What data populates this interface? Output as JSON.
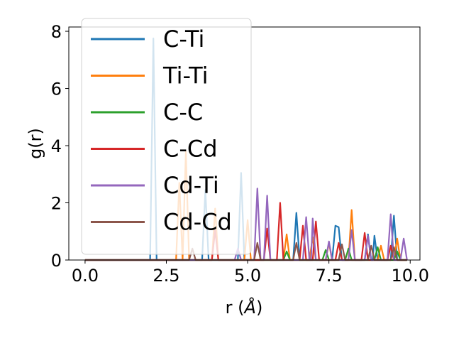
{
  "chart_data": {
    "type": "line",
    "xlabel_main": "r (",
    "xlabel_unit": "Å",
    "xlabel_close": ")",
    "ylabel": "g(r)",
    "xlim": [
      -0.5,
      10.3
    ],
    "ylim": [
      0,
      8.15
    ],
    "xticks": [
      0.0,
      2.5,
      5.0,
      7.5,
      10.0
    ],
    "xtick_labels": [
      "0.0",
      "2.5",
      "5.0",
      "7.5",
      "10.0"
    ],
    "yticks": [
      0,
      2,
      4,
      6,
      8
    ],
    "ytick_labels": [
      "0",
      "2",
      "4",
      "6",
      "8"
    ],
    "legend_position": "upper-left",
    "grid": false,
    "series": [
      {
        "name": "C-Ti",
        "color": "#1f77b4",
        "points": [
          [
            0,
            0
          ],
          [
            2.0,
            0
          ],
          [
            2.1,
            7.75
          ],
          [
            2.2,
            0
          ],
          [
            3.6,
            0
          ],
          [
            3.7,
            2.45
          ],
          [
            3.8,
            0
          ],
          [
            4.7,
            0
          ],
          [
            4.8,
            3.05
          ],
          [
            4.9,
            0
          ],
          [
            6.4,
            0
          ],
          [
            6.5,
            1.65
          ],
          [
            6.6,
            0
          ],
          [
            7.6,
            0
          ],
          [
            7.7,
            1.2
          ],
          [
            7.8,
            1.15
          ],
          [
            7.9,
            0
          ],
          [
            8.6,
            0
          ],
          [
            8.7,
            0.9
          ],
          [
            8.8,
            0
          ],
          [
            8.85,
            0
          ],
          [
            8.9,
            0.85
          ],
          [
            9.0,
            0
          ],
          [
            9.4,
            0
          ],
          [
            9.5,
            1.55
          ],
          [
            9.6,
            0
          ],
          [
            9.9,
            0
          ]
        ]
      },
      {
        "name": "Ti-Ti",
        "color": "#ff7f0e",
        "points": [
          [
            0,
            0
          ],
          [
            2.8,
            0
          ],
          [
            2.9,
            2.7
          ],
          [
            3.0,
            0
          ],
          [
            3.1,
            3.8
          ],
          [
            3.2,
            0
          ],
          [
            3.9,
            0
          ],
          [
            4.0,
            1.8
          ],
          [
            4.1,
            0
          ],
          [
            4.9,
            0
          ],
          [
            5.0,
            1.4
          ],
          [
            5.1,
            0
          ],
          [
            6.1,
            0
          ],
          [
            6.2,
            0.9
          ],
          [
            6.3,
            0
          ],
          [
            6.9,
            0
          ],
          [
            7.0,
            0.8
          ],
          [
            7.1,
            0
          ],
          [
            7.4,
            0
          ],
          [
            7.5,
            0.6
          ],
          [
            7.6,
            0
          ],
          [
            8.1,
            0
          ],
          [
            8.2,
            1.75
          ],
          [
            8.3,
            0
          ],
          [
            9.0,
            0
          ],
          [
            9.1,
            0.5
          ],
          [
            9.2,
            0
          ],
          [
            9.5,
            0
          ],
          [
            9.6,
            0.75
          ],
          [
            9.7,
            0
          ],
          [
            9.9,
            0
          ]
        ]
      },
      {
        "name": "C-C",
        "color": "#2ca02c",
        "points": [
          [
            0,
            0
          ],
          [
            6.1,
            0
          ],
          [
            6.2,
            0.3
          ],
          [
            6.3,
            0
          ],
          [
            7.3,
            0
          ],
          [
            7.4,
            0.35
          ],
          [
            7.5,
            0
          ],
          [
            8.0,
            0
          ],
          [
            8.1,
            0.4
          ],
          [
            8.2,
            0
          ],
          [
            8.9,
            0
          ],
          [
            9.0,
            0.45
          ],
          [
            9.1,
            0
          ],
          [
            9.5,
            0
          ],
          [
            9.6,
            0.3
          ],
          [
            9.7,
            0
          ],
          [
            9.9,
            0
          ]
        ]
      },
      {
        "name": "C-Cd",
        "color": "#d62728",
        "points": [
          [
            0,
            0
          ],
          [
            3.9,
            0
          ],
          [
            4.0,
            1.05
          ],
          [
            4.1,
            0
          ],
          [
            5.5,
            0
          ],
          [
            5.6,
            1.1
          ],
          [
            5.7,
            0
          ],
          [
            5.9,
            0
          ],
          [
            6.0,
            2.0
          ],
          [
            6.1,
            0
          ],
          [
            6.6,
            0
          ],
          [
            6.7,
            1.2
          ],
          [
            6.8,
            0
          ],
          [
            7.0,
            0
          ],
          [
            7.1,
            1.35
          ],
          [
            7.2,
            0
          ],
          [
            7.7,
            0
          ],
          [
            7.8,
            0.6
          ],
          [
            7.9,
            0
          ],
          [
            8.5,
            0
          ],
          [
            8.6,
            0.95
          ],
          [
            8.7,
            0
          ],
          [
            9.3,
            0
          ],
          [
            9.4,
            0.5
          ],
          [
            9.5,
            0
          ],
          [
            9.9,
            0
          ]
        ]
      },
      {
        "name": "Cd-Ti",
        "color": "#9467bd",
        "points": [
          [
            0,
            0
          ],
          [
            4.6,
            0
          ],
          [
            4.7,
            0.4
          ],
          [
            4.8,
            0
          ],
          [
            5.2,
            0
          ],
          [
            5.3,
            2.5
          ],
          [
            5.4,
            0
          ],
          [
            5.5,
            0
          ],
          [
            5.6,
            2.25
          ],
          [
            5.7,
            0
          ],
          [
            6.7,
            0
          ],
          [
            6.8,
            1.5
          ],
          [
            6.9,
            0
          ],
          [
            6.95,
            0
          ],
          [
            7.0,
            1.45
          ],
          [
            7.1,
            0
          ],
          [
            7.4,
            0
          ],
          [
            7.5,
            0.65
          ],
          [
            7.6,
            0
          ],
          [
            8.1,
            0
          ],
          [
            8.2,
            1.05
          ],
          [
            8.3,
            0
          ],
          [
            8.6,
            0
          ],
          [
            8.7,
            0.85
          ],
          [
            8.8,
            0
          ],
          [
            9.3,
            0
          ],
          [
            9.4,
            1.6
          ],
          [
            9.5,
            0
          ],
          [
            9.7,
            0
          ],
          [
            9.8,
            0.75
          ],
          [
            9.9,
            0
          ]
        ]
      },
      {
        "name": "Cd-Cd",
        "color": "#8c564b",
        "points": [
          [
            0,
            0
          ],
          [
            3.2,
            0
          ],
          [
            3.3,
            0.4
          ],
          [
            3.4,
            0
          ],
          [
            5.2,
            0
          ],
          [
            5.3,
            0.6
          ],
          [
            5.4,
            0
          ],
          [
            6.4,
            0
          ],
          [
            6.5,
            0.6
          ],
          [
            6.6,
            0
          ],
          [
            7.8,
            0
          ],
          [
            7.9,
            0.55
          ],
          [
            8.0,
            0
          ],
          [
            8.7,
            0
          ],
          [
            8.8,
            0.5
          ],
          [
            8.9,
            0
          ],
          [
            9.4,
            0
          ],
          [
            9.5,
            0.45
          ],
          [
            9.6,
            0
          ],
          [
            9.9,
            0
          ]
        ]
      }
    ]
  }
}
